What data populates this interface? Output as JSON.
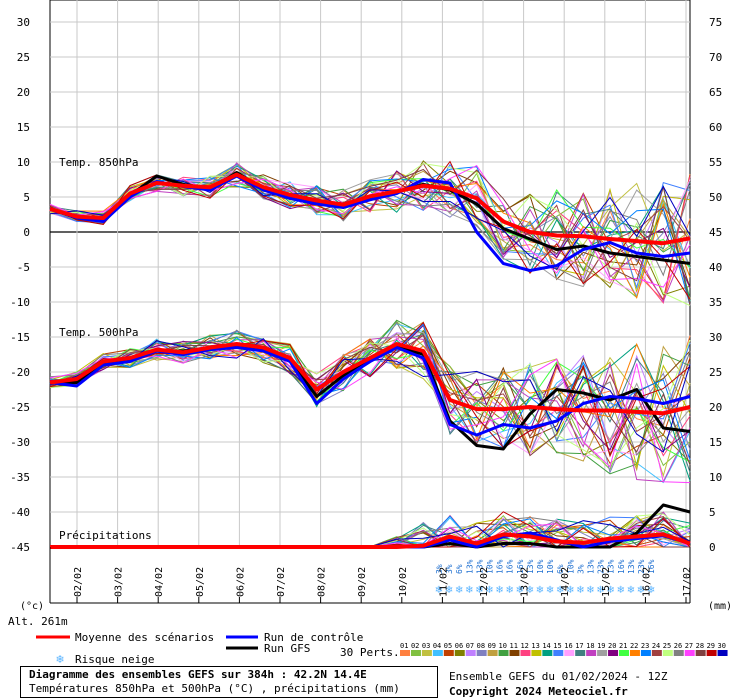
{
  "chart_data": {
    "type": "line",
    "x_dates": [
      "02/02",
      "03/02",
      "04/02",
      "05/02",
      "06/02",
      "07/02",
      "08/02",
      "09/02",
      "10/02",
      "11/02",
      "12/02",
      "13/02",
      "14/02",
      "15/02",
      "16/02",
      "17/02"
    ],
    "left_axis": {
      "unit": "(°c)",
      "ticks": [
        30,
        25,
        20,
        15,
        10,
        5,
        0,
        -5,
        -10,
        -15,
        -20,
        -25,
        -30,
        -35,
        -40,
        -45
      ],
      "ylim": [
        -45,
        30
      ]
    },
    "right_axis": {
      "unit": "(mm)",
      "ticks": [
        75,
        70,
        65,
        60,
        55,
        50,
        45,
        40,
        35,
        30,
        25,
        20,
        15,
        10,
        5,
        0
      ],
      "ylim": [
        0,
        75
      ]
    },
    "panel_labels": {
      "t850": "Temp. 850hPa",
      "t500": "Temp. 500hPa",
      "precip": "Précipitations"
    },
    "altitude": "Alt. 261m",
    "series": [
      {
        "name": "Moyenne des scénarios",
        "color": "#ff0000",
        "t850": [
          3.3,
          2.2,
          2.0,
          5.5,
          7.0,
          6.6,
          6.4,
          8.2,
          6.4,
          5.3,
          4.5,
          3.9,
          5.1,
          5.8,
          6.6,
          6.2,
          4.8,
          1.5,
          0.0,
          -0.5,
          -0.6,
          -1.0,
          -1.3,
          -1.6,
          -0.9
        ],
        "t500": [
          -21.5,
          -21.0,
          -18.5,
          -18.0,
          -16.8,
          -17.2,
          -16.5,
          -16.0,
          -16.5,
          -18.0,
          -22.5,
          -20.0,
          -18.0,
          -16.0,
          -17.0,
          -24.0,
          -25.3,
          -25.3,
          -25.0,
          -25.3,
          -25.5,
          -25.5,
          -25.7,
          -25.9,
          -25.0
        ],
        "precip": [
          0,
          0,
          0,
          0,
          0,
          0,
          0,
          0,
          0,
          0,
          0,
          0,
          0,
          0,
          0.2,
          1.5,
          0.5,
          1.8,
          1.5,
          0.8,
          0.6,
          1.2,
          1.5,
          1.8,
          0.5
        ]
      },
      {
        "name": "Run de contrôle",
        "color": "#0000ff",
        "t850": [
          3.3,
          2.0,
          1.5,
          5.0,
          7.2,
          6.5,
          6.0,
          8.0,
          6.0,
          4.8,
          4.0,
          3.5,
          4.6,
          5.5,
          7.5,
          7.0,
          0.0,
          -4.5,
          -5.5,
          -4.8,
          -2.5,
          -1.5,
          -3.0,
          -3.5,
          -3.0
        ],
        "t500": [
          -21.5,
          -22.0,
          -19.0,
          -18.5,
          -17.0,
          -17.5,
          -16.8,
          -16.5,
          -17.0,
          -18.5,
          -24.5,
          -21.0,
          -18.5,
          -16.5,
          -18.0,
          -27.5,
          -29.0,
          -27.5,
          -28.0,
          -27.0,
          -24.5,
          -23.5,
          -23.8,
          -24.5,
          -23.5
        ],
        "precip": [
          0,
          0,
          0,
          0,
          0,
          0,
          0,
          0,
          0,
          0,
          0,
          0,
          0,
          0,
          0,
          1.0,
          0,
          1.5,
          2.0,
          1.0,
          0,
          0.8,
          1.2,
          1.6,
          0.5
        ]
      },
      {
        "name": "Run GFS",
        "color": "#000000",
        "t850": [
          3.3,
          2.0,
          1.8,
          5.2,
          8.0,
          6.8,
          6.2,
          8.5,
          6.2,
          5.0,
          4.2,
          3.8,
          4.8,
          5.8,
          6.8,
          6.0,
          4.0,
          0.5,
          -1.0,
          -2.5,
          -2.0,
          -3.0,
          -3.5,
          -4.0,
          -4.5
        ],
        "t500": [
          -21.5,
          -21.5,
          -18.8,
          -18.2,
          -17.0,
          -17.0,
          -16.6,
          -16.2,
          -16.8,
          -18.3,
          -23.5,
          -20.5,
          -18.3,
          -16.3,
          -17.5,
          -27.0,
          -30.5,
          -31.0,
          -26.0,
          -22.5,
          -23.0,
          -24.0,
          -22.5,
          -28.0,
          -28.5
        ],
        "precip": [
          0,
          0,
          0,
          0,
          0,
          0,
          0,
          0,
          0,
          0,
          0,
          0,
          0,
          0,
          0,
          0.5,
          0,
          0.5,
          0.5,
          0,
          0,
          0,
          2.0,
          6.0,
          5.0
        ]
      }
    ]
  },
  "snow_risk": [
    "3%",
    "3%",
    "6%",
    "13%",
    "13%",
    "10%",
    "16%",
    "16%",
    "16%",
    "13%",
    "10%",
    "10%",
    "6%",
    "10%",
    "3%",
    "13%",
    "23%",
    "13%",
    "16%",
    "13%",
    "23%",
    "16%"
  ],
  "legend": {
    "mean": "Moyenne des scénarios",
    "control": "Run de contrôle",
    "gfs": "Run GFS",
    "snow": "Risque neige",
    "perts": "30 Perts.",
    "pert_numbers": [
      "01",
      "02",
      "03",
      "04",
      "05",
      "06",
      "07",
      "08",
      "09",
      "10",
      "11",
      "12",
      "13",
      "14",
      "15",
      "16",
      "17",
      "18",
      "19",
      "20",
      "21",
      "22",
      "23",
      "24",
      "25",
      "26",
      "27",
      "28",
      "29",
      "30"
    ],
    "pert_colors": [
      "#ff8040",
      "#80c040",
      "#c0c040",
      "#40c0ff",
      "#c04000",
      "#808000",
      "#c080ff",
      "#8080c0",
      "#c0a040",
      "#40a040",
      "#804000",
      "#ff4080",
      "#c0c000",
      "#00a080",
      "#4080ff",
      "#ffa0ff",
      "#408080",
      "#c040c0",
      "#a0a0a0",
      "#800080",
      "#40ff40",
      "#ff8000",
      "#0080ff",
      "#a04040",
      "#c0ff80",
      "#808080",
      "#ff40ff",
      "#804040",
      "#c00000",
      "#0000c0"
    ]
  },
  "footer": {
    "title": "Diagramme des ensembles GEFS sur 384h : 42.2N 14.4E",
    "subtitle": "Températures 850hPa et 500hPa (°C) , précipitations (mm)",
    "run": "Ensemble GEFS du 01/02/2024 - 12Z",
    "copyright": "Copyright 2024 Meteociel.fr"
  }
}
